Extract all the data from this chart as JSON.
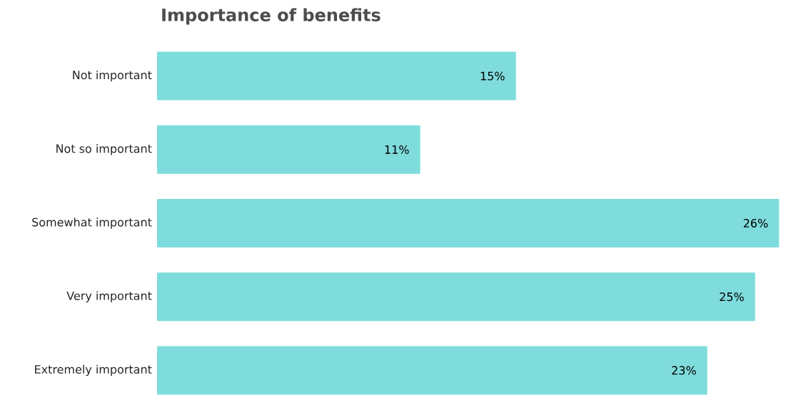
{
  "chart_data": {
    "type": "bar",
    "orientation": "horizontal",
    "title": "Importance of benefits",
    "categories": [
      "Not important",
      "Not so important",
      "Somewhat important",
      "Very important",
      "Extremely important"
    ],
    "values": [
      15,
      11,
      26,
      25,
      23
    ],
    "value_labels": [
      "15%",
      "11%",
      "26%",
      "25%",
      "23%"
    ],
    "color": "#7fdcdc"
  }
}
